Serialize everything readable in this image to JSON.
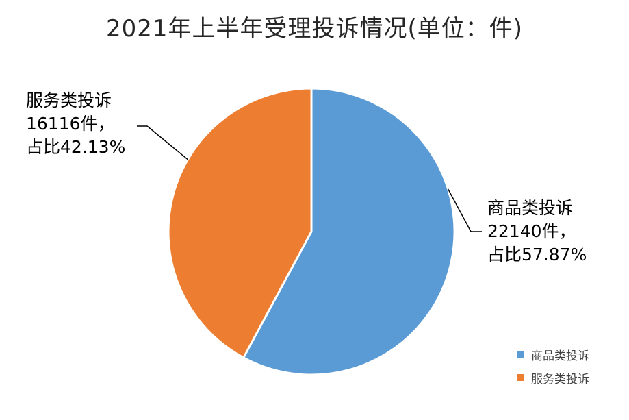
{
  "chart_data": {
    "type": "pie",
    "title": "2021年上半年受理投诉情况(单位：件)",
    "slices": [
      {
        "name": "商品类投诉",
        "value": 22140,
        "percent": 57.87,
        "color": "#5B9BD5",
        "label_line1": "商品类投诉",
        "label_line2": "22140件，",
        "label_line3": "占比57.87%"
      },
      {
        "name": "服务类投诉",
        "value": 16116,
        "percent": 42.13,
        "color": "#ED7D31",
        "label_line1": "服务类投诉",
        "label_line2": "16116件，",
        "label_line3": "占比42.13%"
      }
    ],
    "legend": {
      "position": "bottom-right",
      "items": [
        "商品类投诉",
        "服务类投诉"
      ]
    }
  }
}
